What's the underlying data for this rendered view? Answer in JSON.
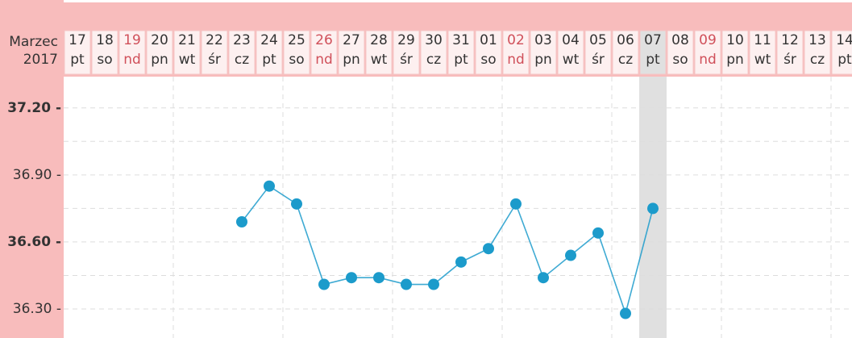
{
  "chart_data": {
    "type": "line",
    "month": "Marzec",
    "year": "2017",
    "categories": [
      "17",
      "18",
      "19",
      "20",
      "21",
      "22",
      "23",
      "24",
      "25",
      "26",
      "27",
      "28",
      "29",
      "30",
      "31",
      "01",
      "02",
      "03",
      "04",
      "05",
      "06",
      "07",
      "08",
      "09",
      "10",
      "11",
      "12",
      "13",
      "14"
    ],
    "weekdays": [
      "pt",
      "so",
      "nd",
      "pn",
      "wt",
      "śr",
      "cz",
      "pt",
      "so",
      "nd",
      "pn",
      "wt",
      "śr",
      "cz",
      "pt",
      "so",
      "nd",
      "pn",
      "wt",
      "śr",
      "cz",
      "pt",
      "so",
      "nd",
      "pn",
      "wt",
      "śr",
      "cz",
      "pt"
    ],
    "sunday_indices": [
      2,
      9,
      16,
      23
    ],
    "sunday_color": "#d0505a",
    "highlight_index": 21,
    "series": [
      {
        "color": "#1c9bcb",
        "values": [
          null,
          null,
          null,
          null,
          null,
          null,
          36.69,
          36.85,
          36.77,
          36.41,
          36.44,
          36.44,
          36.41,
          36.41,
          36.51,
          36.57,
          36.77,
          36.44,
          36.54,
          36.64,
          36.28,
          36.75,
          null,
          null,
          null,
          null,
          null,
          null,
          null
        ]
      }
    ],
    "ylim": [
      36.17,
      37.34
    ],
    "yticks": [
      {
        "value": 36.3,
        "label": "36.30 -"
      },
      {
        "value": 36.6,
        "label": "36.60 -"
      },
      {
        "value": 36.9,
        "label": "36.90 -"
      },
      {
        "value": 37.2,
        "label": "37.20 -"
      }
    ],
    "grid": true
  }
}
